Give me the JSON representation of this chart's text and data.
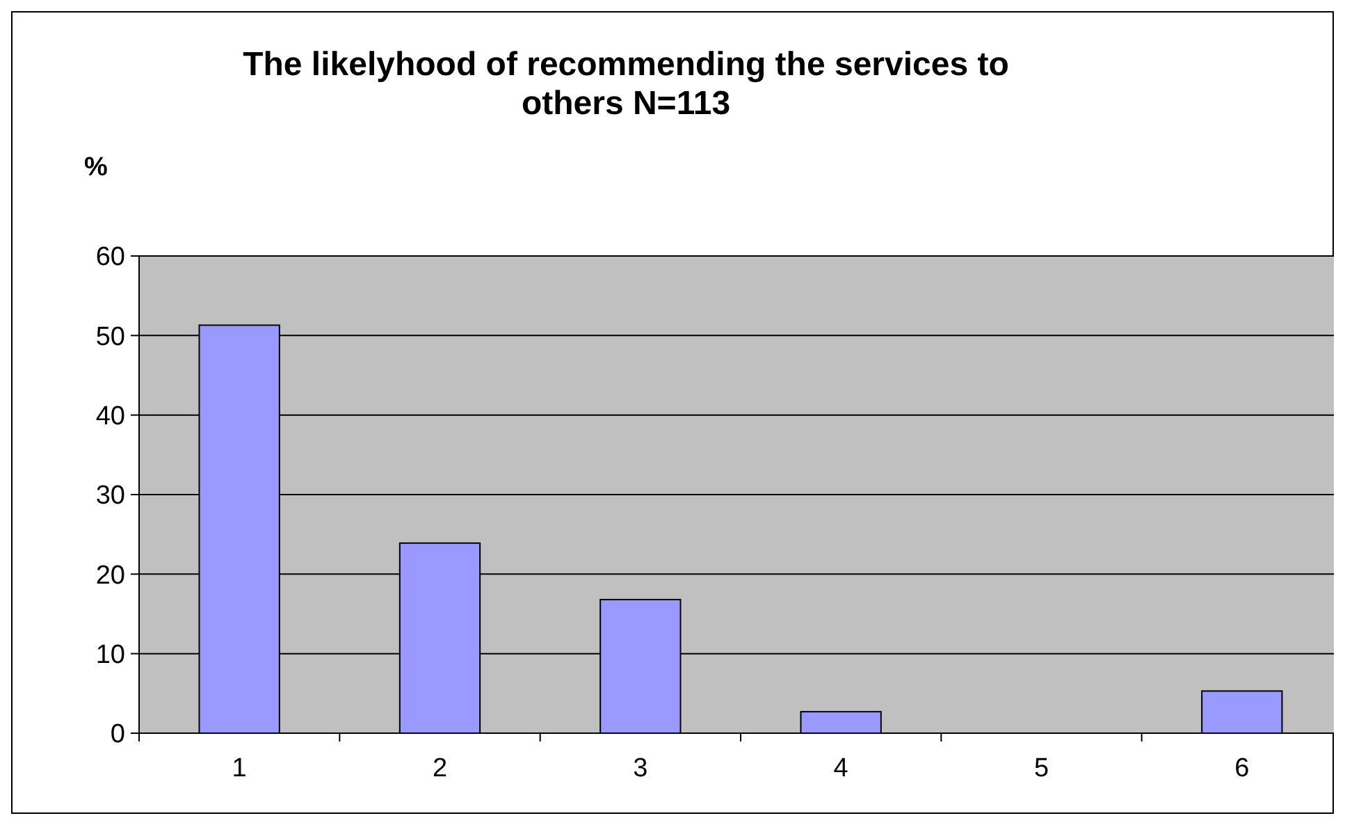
{
  "chart_data": {
    "type": "bar",
    "title": "The likelyhood of recommending the services to others N=113",
    "ylabel": "%",
    "categories": [
      "1",
      "2",
      "3",
      "4",
      "5",
      "6"
    ],
    "values": [
      51.3,
      23.9,
      16.8,
      2.7,
      0,
      5.3
    ],
    "color": "#9999ff",
    "ylim": [
      0,
      60
    ],
    "yticks": [
      0,
      10,
      20,
      30,
      40,
      50,
      60
    ],
    "grid": "y"
  }
}
